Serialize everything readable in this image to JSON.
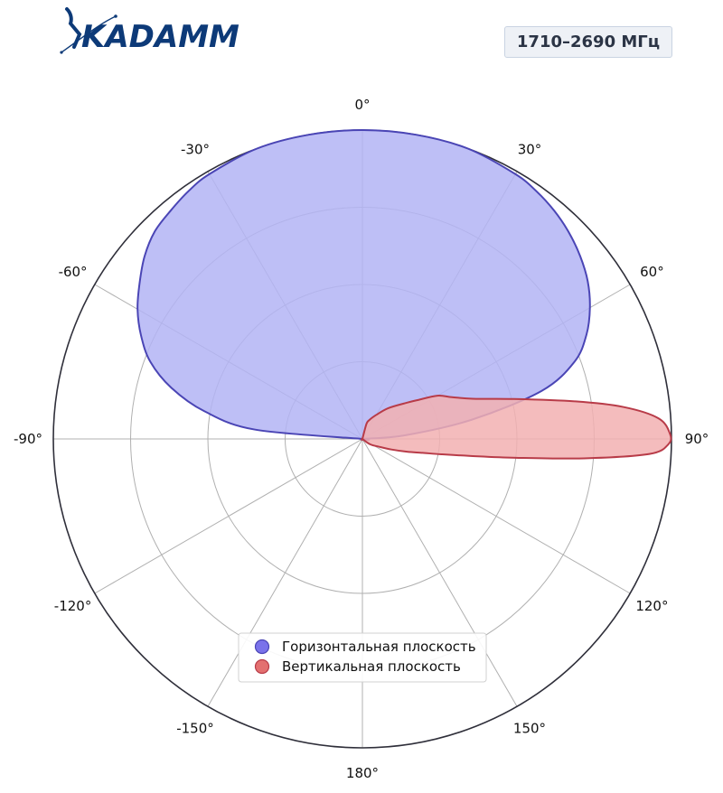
{
  "logo": {
    "text": "KADAMM",
    "color": "#0d3a78"
  },
  "badge": {
    "frequency": "1710–2690 МГц"
  },
  "chart_data": {
    "type": "polar-area",
    "title": "",
    "angle_unit": "degrees",
    "angle_zero": "top",
    "angle_direction": "clockwise",
    "radial_range": [
      0,
      1
    ],
    "radial_gridlines": [
      0.25,
      0.5,
      0.75,
      1.0
    ],
    "radial_tick_labels_shown": false,
    "angular_gridlines_every": 30,
    "angular_tick_labels": [
      "0°",
      "30°",
      "60°",
      "90°",
      "120°",
      "150°",
      "180°",
      "-150°",
      "-120°",
      "-90°",
      "-60°",
      "-30°"
    ],
    "angular_tick_values": [
      0,
      30,
      60,
      90,
      120,
      150,
      180,
      -150,
      -120,
      -90,
      -60,
      -30
    ],
    "grid": true,
    "legend_position": "bottom-center",
    "series": [
      {
        "name": "Горизонтальная плоскость",
        "color": "#6b63e8",
        "fill": "#b3b4f5",
        "edge": "#4a45b5",
        "points": [
          {
            "theta": -90,
            "r": 0.0
          },
          {
            "theta": -85,
            "r": 0.35
          },
          {
            "theta": -80,
            "r": 0.52
          },
          {
            "theta": -75,
            "r": 0.64
          },
          {
            "theta": -70,
            "r": 0.73
          },
          {
            "theta": -65,
            "r": 0.79
          },
          {
            "theta": -60,
            "r": 0.84
          },
          {
            "theta": -55,
            "r": 0.88
          },
          {
            "theta": -50,
            "r": 0.92
          },
          {
            "theta": -45,
            "r": 0.95
          },
          {
            "theta": -40,
            "r": 0.965
          },
          {
            "theta": -35,
            "r": 0.98
          },
          {
            "theta": -30,
            "r": 0.99
          },
          {
            "theta": -20,
            "r": 1.0
          },
          {
            "theta": -10,
            "r": 1.0
          },
          {
            "theta": 0,
            "r": 1.0
          },
          {
            "theta": 10,
            "r": 1.0
          },
          {
            "theta": 20,
            "r": 1.0
          },
          {
            "theta": 30,
            "r": 0.99
          },
          {
            "theta": 35,
            "r": 0.98
          },
          {
            "theta": 40,
            "r": 0.965
          },
          {
            "theta": 45,
            "r": 0.945
          },
          {
            "theta": 50,
            "r": 0.92
          },
          {
            "theta": 55,
            "r": 0.89
          },
          {
            "theta": 60,
            "r": 0.85
          },
          {
            "theta": 65,
            "r": 0.8
          },
          {
            "theta": 70,
            "r": 0.73
          },
          {
            "theta": 75,
            "r": 0.6
          },
          {
            "theta": 80,
            "r": 0.36
          },
          {
            "theta": 85,
            "r": 0.14
          },
          {
            "theta": 90,
            "r": 0.0
          }
        ]
      },
      {
        "name": "Вертикальная плоскость",
        "color": "#e06060",
        "fill": "#f2b0b2",
        "edge": "#b83b48",
        "points": [
          {
            "theta": 10,
            "r": 0.0
          },
          {
            "theta": 15,
            "r": 0.05
          },
          {
            "theta": 20,
            "r": 0.065
          },
          {
            "theta": 30,
            "r": 0.09
          },
          {
            "theta": 40,
            "r": 0.13
          },
          {
            "theta": 50,
            "r": 0.18
          },
          {
            "theta": 55,
            "r": 0.22
          },
          {
            "theta": 60,
            "r": 0.28
          },
          {
            "theta": 65,
            "r": 0.32
          },
          {
            "theta": 70,
            "r": 0.38
          },
          {
            "theta": 75,
            "r": 0.5
          },
          {
            "theta": 80,
            "r": 0.7
          },
          {
            "theta": 83,
            "r": 0.85
          },
          {
            "theta": 86,
            "r": 0.96
          },
          {
            "theta": 89,
            "r": 0.995
          },
          {
            "theta": 91,
            "r": 0.99
          },
          {
            "theta": 93,
            "r": 0.93
          },
          {
            "theta": 95,
            "r": 0.72
          },
          {
            "theta": 97,
            "r": 0.5
          },
          {
            "theta": 99,
            "r": 0.35
          },
          {
            "theta": 101,
            "r": 0.26
          },
          {
            "theta": 103,
            "r": 0.2
          },
          {
            "theta": 106,
            "r": 0.15
          },
          {
            "theta": 110,
            "r": 0.1
          },
          {
            "theta": 115,
            "r": 0.06
          },
          {
            "theta": 125,
            "r": 0.03
          },
          {
            "theta": 140,
            "r": 0.0
          }
        ]
      }
    ]
  }
}
